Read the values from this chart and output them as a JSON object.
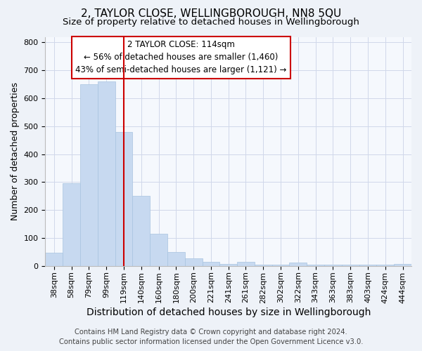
{
  "title": "2, TAYLOR CLOSE, WELLINGBOROUGH, NN8 5QU",
  "subtitle": "Size of property relative to detached houses in Wellingborough",
  "xlabel": "Distribution of detached houses by size in Wellingborough",
  "ylabel": "Number of detached properties",
  "bar_labels": [
    "38sqm",
    "58sqm",
    "79sqm",
    "99sqm",
    "119sqm",
    "140sqm",
    "160sqm",
    "180sqm",
    "200sqm",
    "221sqm",
    "241sqm",
    "261sqm",
    "282sqm",
    "302sqm",
    "322sqm",
    "343sqm",
    "363sqm",
    "383sqm",
    "403sqm",
    "424sqm",
    "444sqm"
  ],
  "bar_heights": [
    48,
    295,
    650,
    660,
    480,
    250,
    115,
    50,
    28,
    15,
    8,
    15,
    5,
    5,
    12,
    5,
    5,
    5,
    5,
    5,
    8
  ],
  "bar_color": "#c7d9f0",
  "bar_edge_color": "#a8c4e0",
  "vline_x_index": 4,
  "vline_color": "#cc0000",
  "annotation_title": "2 TAYLOR CLOSE: 114sqm",
  "annotation_line1": "← 56% of detached houses are smaller (1,460)",
  "annotation_line2": "43% of semi-detached houses are larger (1,121) →",
  "annotation_box_color": "#ffffff",
  "annotation_box_edge_color": "#cc0000",
  "ylim": [
    0,
    820
  ],
  "yticks": [
    0,
    100,
    200,
    300,
    400,
    500,
    600,
    700,
    800
  ],
  "footer_line1": "Contains HM Land Registry data © Crown copyright and database right 2024.",
  "footer_line2": "Contains public sector information licensed under the Open Government Licence v3.0.",
  "bg_color": "#eef2f8",
  "plot_bg_color": "#f5f8fd",
  "grid_color": "#d0d8ea",
  "title_fontsize": 11,
  "subtitle_fontsize": 9.5,
  "xlabel_fontsize": 10,
  "ylabel_fontsize": 9,
  "tick_fontsize": 8,
  "annot_fontsize": 8.5,
  "footer_fontsize": 7.2
}
